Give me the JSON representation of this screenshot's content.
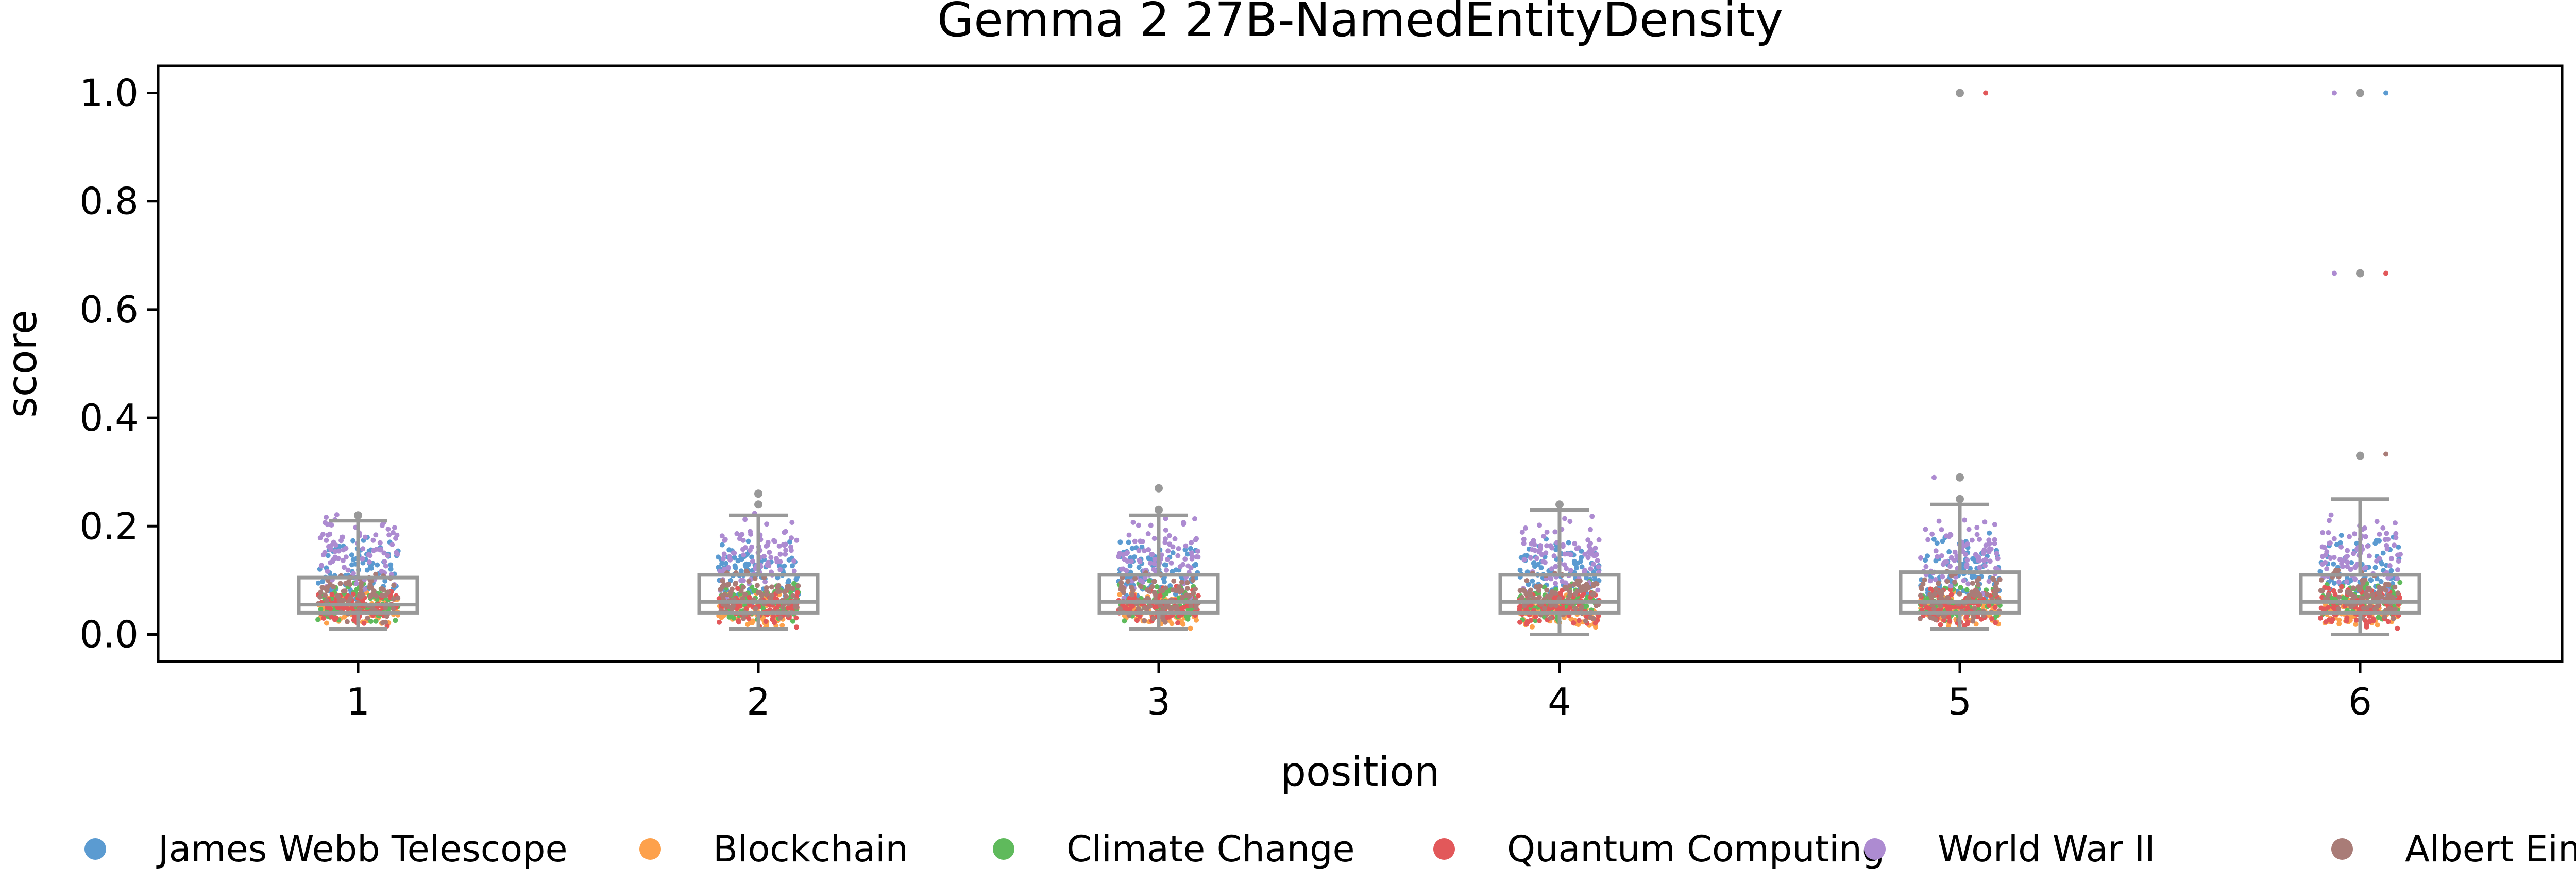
{
  "chart_data": {
    "type": "box",
    "title": "Gemma 2 27B-NamedEntityDensity",
    "xlabel": "position",
    "ylabel": "score",
    "ylim": [
      -0.05,
      1.05
    ],
    "yticks": [
      "0.0",
      "0.2",
      "0.4",
      "0.6",
      "0.8",
      "1.0"
    ],
    "categories": [
      "1",
      "2",
      "3",
      "4",
      "5",
      "6"
    ],
    "grid": false,
    "legend_position": "bottom",
    "box_color": "#999999",
    "series": [
      {
        "name": "James Webb Telescope",
        "color": "#5b9bd1",
        "range": [
          0.04,
          0.19
        ]
      },
      {
        "name": "Blockchain",
        "color": "#fda14c",
        "range": [
          0.01,
          0.08
        ]
      },
      {
        "name": "Climate Change",
        "color": "#5fba5c",
        "range": [
          0.02,
          0.1
        ]
      },
      {
        "name": "Quantum Computing",
        "color": "#e2585a",
        "range": [
          0.01,
          0.09
        ]
      },
      {
        "name": "World War II",
        "color": "#ad8bd1",
        "range": [
          0.06,
          0.23
        ]
      },
      {
        "name": "Albert Einstein",
        "color": "#a97c77",
        "range": [
          0.02,
          0.12
        ]
      }
    ],
    "boxes": [
      {
        "position": "1",
        "whisker_low": 0.01,
        "q1": 0.04,
        "median": 0.055,
        "q3": 0.105,
        "whisker_high": 0.21
      },
      {
        "position": "2",
        "whisker_low": 0.01,
        "q1": 0.04,
        "median": 0.06,
        "q3": 0.11,
        "whisker_high": 0.22
      },
      {
        "position": "3",
        "whisker_low": 0.01,
        "q1": 0.04,
        "median": 0.06,
        "q3": 0.11,
        "whisker_high": 0.22
      },
      {
        "position": "4",
        "whisker_low": 0.0,
        "q1": 0.04,
        "median": 0.06,
        "q3": 0.11,
        "whisker_high": 0.23
      },
      {
        "position": "5",
        "whisker_low": 0.01,
        "q1": 0.04,
        "median": 0.06,
        "q3": 0.115,
        "whisker_high": 0.24
      },
      {
        "position": "6",
        "whisker_low": 0.0,
        "q1": 0.04,
        "median": 0.06,
        "q3": 0.11,
        "whisker_high": 0.25
      }
    ],
    "outliers": [
      {
        "position": "1",
        "value": 0.22
      },
      {
        "position": "2",
        "value": 0.24
      },
      {
        "position": "2",
        "value": 0.26
      },
      {
        "position": "3",
        "value": 0.23
      },
      {
        "position": "3",
        "value": 0.27
      },
      {
        "position": "4",
        "value": 0.24
      },
      {
        "position": "5",
        "value": 0.25
      },
      {
        "position": "5",
        "value": 0.29
      },
      {
        "position": "5",
        "value": 1.0
      },
      {
        "position": "6",
        "value": 0.33
      },
      {
        "position": "6",
        "value": 0.667
      },
      {
        "position": "6",
        "value": 1.0
      }
    ],
    "extreme_points": [
      {
        "position": "5",
        "value": 1.0,
        "series": "Quantum Computing"
      },
      {
        "position": "5",
        "value": 0.29,
        "series": "World War II"
      },
      {
        "position": "6",
        "value": 1.0,
        "series": "James Webb Telescope"
      },
      {
        "position": "6",
        "value": 1.0,
        "series": "World War II"
      },
      {
        "position": "6",
        "value": 0.667,
        "series": "Quantum Computing"
      },
      {
        "position": "6",
        "value": 0.667,
        "series": "World War II"
      },
      {
        "position": "6",
        "value": 0.333,
        "series": "Albert Einstein"
      }
    ]
  }
}
